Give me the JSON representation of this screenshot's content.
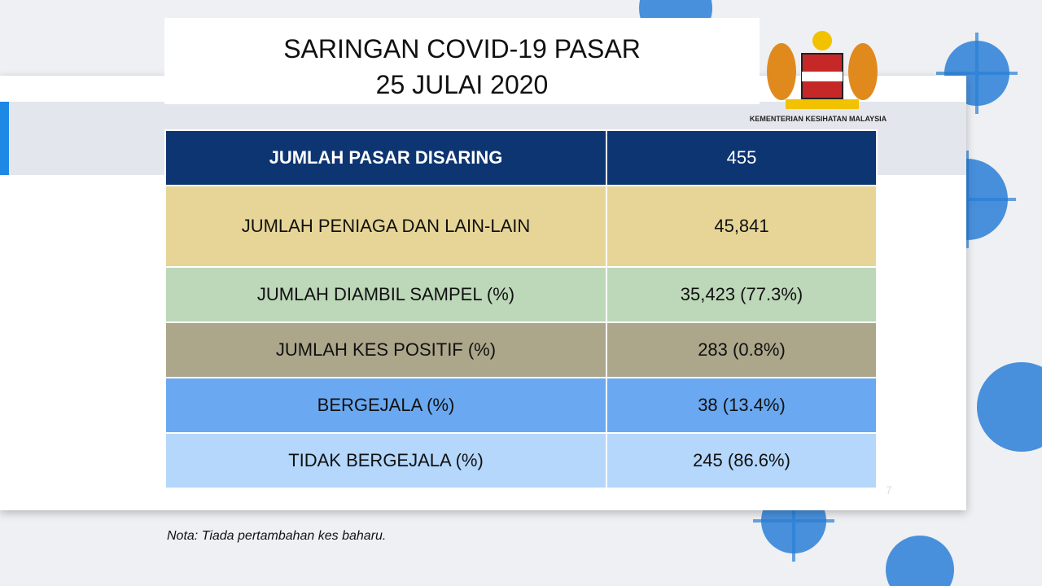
{
  "header": {
    "title_line1": "SARINGAN COVID-19 PASAR",
    "title_line2": "25 JULAI 2020",
    "logo_caption": "KEMENTERIAN KESIHATAN MALAYSIA"
  },
  "table": {
    "rows": [
      [
        "JUMLAH PASAR DISARING",
        "455"
      ],
      [
        "JUMLAH PENIAGA DAN LAIN-LAIN",
        "45,841"
      ],
      [
        "JUMLAH DIAMBIL SAMPEL (%)",
        "35,423 (77.3%)"
      ],
      [
        "JUMLAH KES POSITIF (%)",
        "283 (0.8%)"
      ],
      [
        "BERGEJALA (%)",
        "38 (13.4%)"
      ],
      [
        "TIDAK BERGEJALA (%)",
        "245 (86.6%)"
      ]
    ]
  },
  "note": "Nota: Tiada pertambahan kes baharu.",
  "page_number": "7"
}
